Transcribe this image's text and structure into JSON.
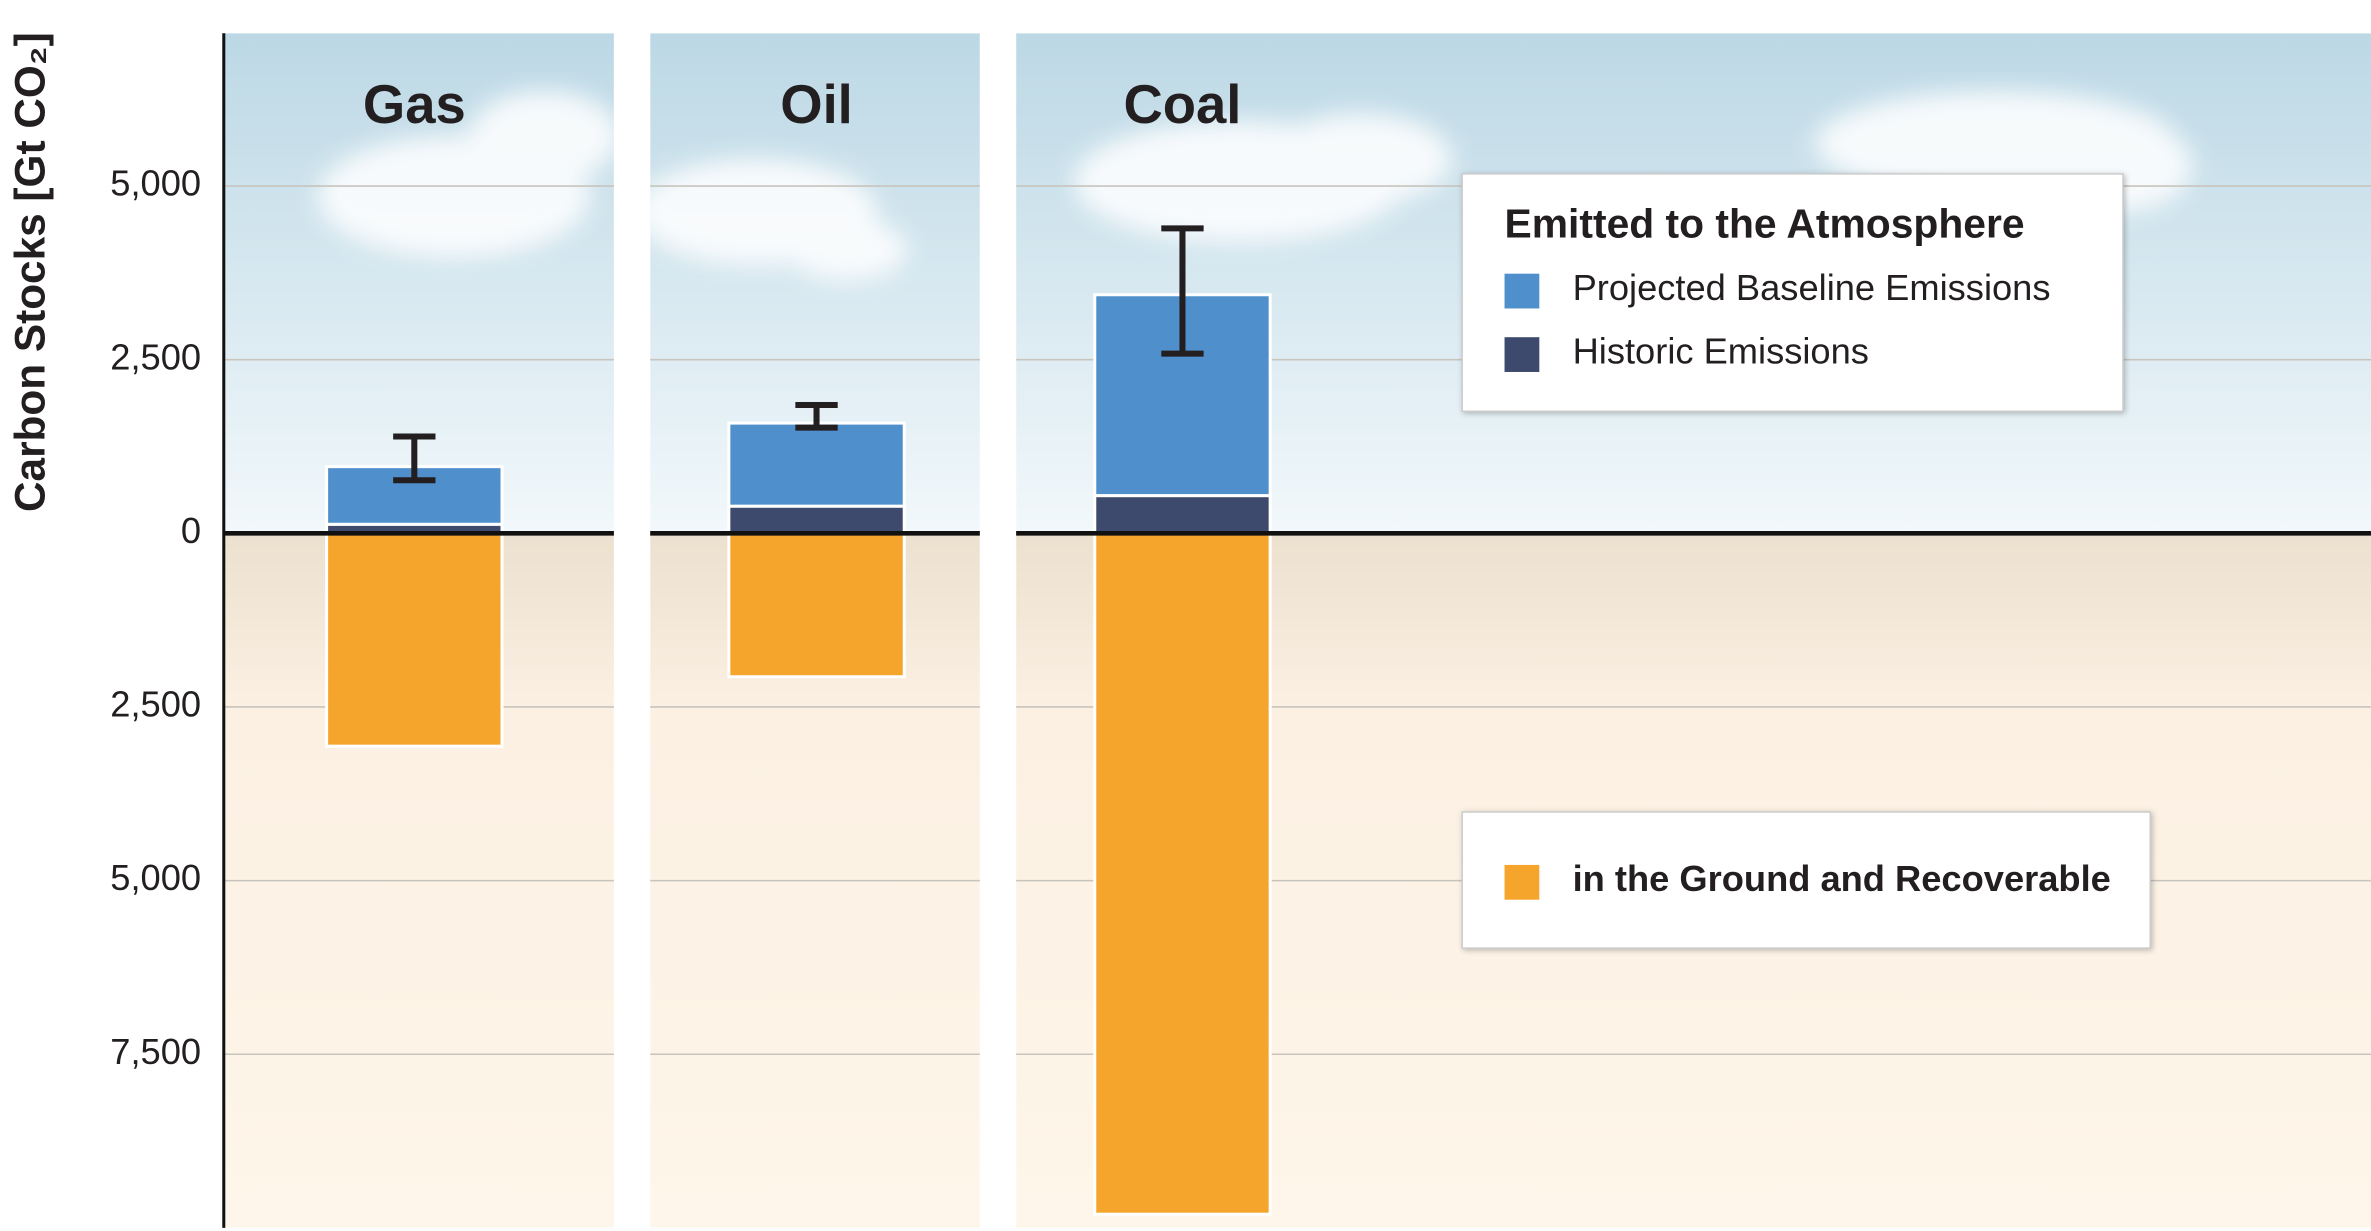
{
  "chart_data": {
    "type": "bar",
    "y_label": "Carbon Stocks [Gt CO₂]",
    "legend_title": "Emitted to the Atmosphere",
    "categories": [
      "Gas",
      "Oil",
      "Coal"
    ],
    "series": [
      {
        "name": "Projected Baseline Emissions",
        "color": "#4f8fcb",
        "values": [
          830,
          1196,
          2892
        ],
        "error_minus": [
          196,
          65,
          848
        ],
        "error_plus": [
          434,
          261,
          956
        ]
      },
      {
        "name": "Historic Emissions",
        "color": "#3d4a6e",
        "values": [
          130,
          391,
          543
        ]
      },
      {
        "name": "in the Ground and Recoverable",
        "color": "#f5a52c",
        "values": [
          -3065,
          -2065,
          -9804
        ]
      }
    ],
    "ylim": [
      -10000,
      7200
    ],
    "yticks": [
      {
        "value": -7500,
        "label": "7,500"
      },
      {
        "value": -5000,
        "label": "5,000"
      },
      {
        "value": -2500,
        "label": "2,500"
      },
      0,
      {
        "value": 2500,
        "label": "2,500"
      },
      {
        "value": 5000,
        "label": "5,000"
      }
    ],
    "grid": true
  }
}
